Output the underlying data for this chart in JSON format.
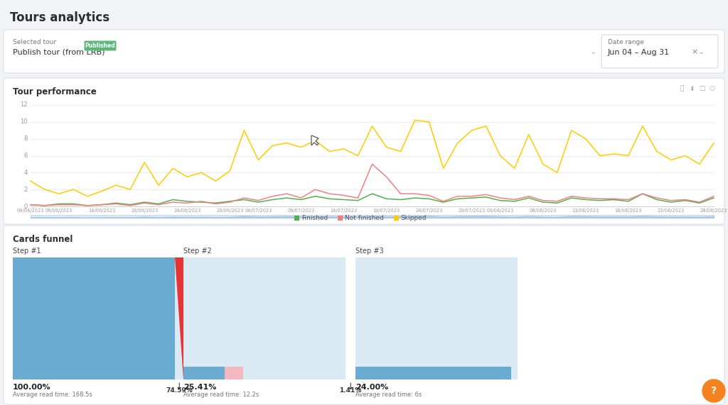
{
  "title": "Tours analytics",
  "background_color": "#f1f3f6",
  "panel_color": "#ffffff",
  "selected_tour_label": "Selected tour",
  "selected_tour_value": "Publish tour (from LRB)",
  "published_badge": "Published",
  "published_badge_color": "#5cb87a",
  "date_range_label": "Date range",
  "date_range_value": "Jun 04 – Aug 31",
  "tour_performance_title": "Tour performance",
  "x_labels": [
    "04/06/2023",
    "09/06/2023",
    "14/06/2023",
    "19/06/2023",
    "24/06/2023",
    "29/06/2023",
    "04/07/2023",
    "09/07/2023",
    "14/07/2023",
    "19/07/2023",
    "24/07/2023",
    "29/07/2023",
    "03/08/2023",
    "08/08/2023",
    "13/08/2023",
    "18/08/2023",
    "23/08/2023",
    "28/08/2023"
  ],
  "skipped_data": [
    3.0,
    2.0,
    1.5,
    2.0,
    1.2,
    1.8,
    2.5,
    2.0,
    5.2,
    2.5,
    4.5,
    3.5,
    4.0,
    3.0,
    4.2,
    9.0,
    5.5,
    7.2,
    7.5,
    7.0,
    7.8,
    6.5,
    6.8,
    6.0,
    9.5,
    7.0,
    6.5,
    10.2,
    10.0,
    4.5,
    7.5,
    9.0,
    9.5,
    6.0,
    4.5,
    8.5,
    5.0,
    4.0,
    9.0,
    8.0,
    6.0,
    6.2,
    6.0,
    9.5,
    6.5,
    5.5,
    6.0,
    5.0,
    7.5
  ],
  "finished_data": [
    0.2,
    0.1,
    0.3,
    0.3,
    0.1,
    0.2,
    0.4,
    0.2,
    0.5,
    0.3,
    0.8,
    0.6,
    0.5,
    0.4,
    0.6,
    0.8,
    0.5,
    0.8,
    1.0,
    0.8,
    1.2,
    0.9,
    0.8,
    0.7,
    1.5,
    0.9,
    0.8,
    1.0,
    0.9,
    0.5,
    0.9,
    1.0,
    1.1,
    0.7,
    0.6,
    1.0,
    0.5,
    0.4,
    1.0,
    0.8,
    0.7,
    0.8,
    0.6,
    1.5,
    0.8,
    0.5,
    0.7,
    0.4,
    1.0
  ],
  "not_finished_data": [
    0.2,
    0.1,
    0.2,
    0.2,
    0.1,
    0.2,
    0.3,
    0.1,
    0.4,
    0.2,
    0.5,
    0.4,
    0.6,
    0.3,
    0.5,
    1.0,
    0.7,
    1.2,
    1.5,
    1.0,
    2.0,
    1.5,
    1.3,
    1.0,
    5.0,
    3.5,
    1.5,
    1.5,
    1.3,
    0.6,
    1.2,
    1.2,
    1.4,
    1.0,
    0.8,
    1.2,
    0.7,
    0.6,
    1.2,
    1.0,
    0.9,
    0.9,
    0.8,
    1.5,
    1.0,
    0.7,
    0.8,
    0.5,
    1.2
  ],
  "skipped_color": "#ffcc00",
  "finished_color": "#52b050",
  "not_finished_color": "#f08080",
  "y_min": 0,
  "y_max": 12,
  "y_ticks": [
    0,
    2,
    4,
    6,
    8,
    10,
    12
  ],
  "legend_finished": "Finished",
  "legend_not_finished": "Not finished",
  "legend_skipped": "Skipped",
  "cards_funnel_title": "Cards funnel",
  "step1_label": "Step #1",
  "step1_pct": "100.00%",
  "step1_read_time": "Average read time: 168.5s",
  "step1_drop": "74.59%",
  "step2_label": "Step #2",
  "step2_pct": "25.41%",
  "step2_read_time": "Average read time: 12.2s",
  "step2_drop": "1.41%",
  "step3_label": "Step #3",
  "step3_pct": "24.00%",
  "step3_read_time": "Average read time: 6s",
  "funnel_blue": "#6aabd2",
  "funnel_blue_light": "#daeaf5",
  "funnel_red": "#e63535",
  "funnel_pink": "#f4b8be",
  "step1_proportion": 1.0,
  "step2_proportion": 0.2541,
  "step3_proportion": 0.24,
  "step1_drop_val": 0.7459,
  "step2_drop_val": 0.0141
}
